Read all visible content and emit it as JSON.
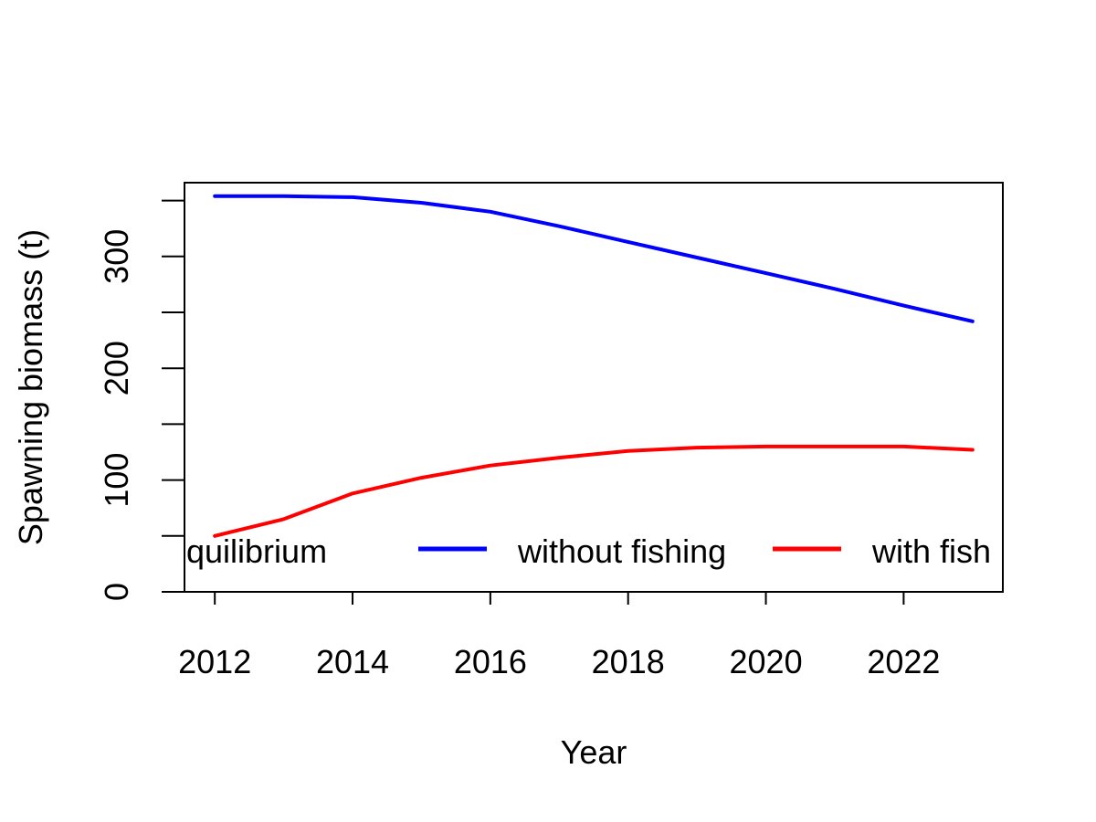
{
  "chart_data": {
    "type": "line",
    "title": "",
    "xlabel": "Year",
    "ylabel": "Spawning biomass (t)",
    "xlim": [
      2011.56,
      2023.44
    ],
    "ylim": [
      0,
      366
    ],
    "x_ticks": [
      2012,
      2014,
      2016,
      2018,
      2020,
      2022
    ],
    "y_ticks": [
      0,
      100,
      200,
      300
    ],
    "y_tick_labels": [
      "0",
      "100",
      "200",
      "300"
    ],
    "x": [
      2012,
      2013,
      2014,
      2015,
      2016,
      2017,
      2018,
      2019,
      2020,
      2021,
      2022,
      2023
    ],
    "series": [
      {
        "name": "without fishing",
        "color": "#0000FF",
        "values": [
          354,
          354,
          353,
          348,
          340,
          327,
          313,
          299,
          285,
          271,
          256,
          242
        ]
      },
      {
        "name": "with fishing",
        "color": "#FF0000",
        "values": [
          50,
          65,
          88,
          102,
          113,
          120,
          126,
          129,
          130,
          130,
          130,
          127
        ]
      }
    ],
    "grid": false,
    "legend": {
      "placement": "bottom",
      "entries": [
        {
          "label": "quilibrium",
          "color": "",
          "has_line": false
        },
        {
          "label": "without fishing",
          "color": "#0000FF",
          "has_line": true
        },
        {
          "label": "with fish",
          "color": "#FF0000",
          "has_line": true
        }
      ]
    }
  }
}
